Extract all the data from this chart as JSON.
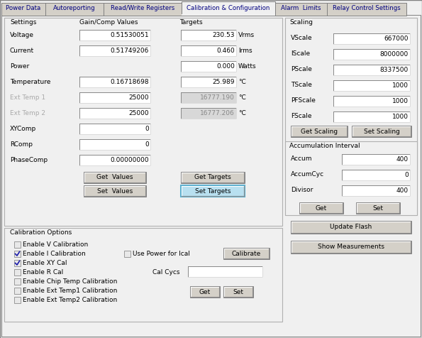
{
  "bg_color": "#f0f0f0",
  "tab_names": [
    "Power Data",
    "Autoreporting",
    "Read/Write Registers",
    "Calibration & Configuration",
    "Alarm  Limits",
    "Relay Control Settings"
  ],
  "active_tab": 3,
  "tab_bg": "#d4d0c8",
  "active_tab_bg": "#f0f0f0",
  "panel_bg": "#f0f0f0",
  "border_color": "#808080",
  "scale_labels": [
    "VScale",
    "IScale",
    "PScale",
    "TScale",
    "PFScale",
    "FScale"
  ],
  "scale_values": [
    "667000",
    "8000000",
    "8337500",
    "1000",
    "1000",
    "1000"
  ],
  "accum_labels": [
    "Accum",
    "AccumCyc",
    "Divisor"
  ],
  "accum_values": [
    "400",
    "0",
    "400"
  ],
  "text_color": "#000000",
  "gray_text": "#aaaaaa",
  "input_bg": "#ffffff",
  "disabled_input_bg": "#d8d8d8",
  "button_bg": "#d4d0c8",
  "highlight_button_bg": "#b8e0f0",
  "inner_border": "#999999",
  "tab_widths": [
    62,
    82,
    110,
    132,
    73,
    112
  ],
  "fs": 6.5
}
